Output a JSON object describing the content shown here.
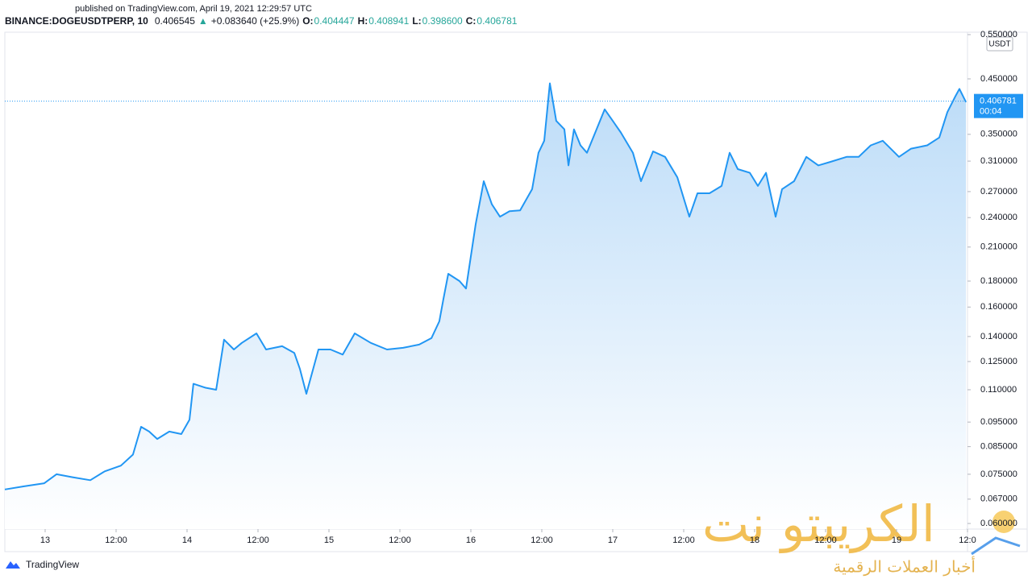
{
  "header": {
    "published": "published on TradingView.com, April 19, 2021 12:29:57 UTC",
    "symbol": "BINANCE:DOGEUSDTPERP, 10",
    "last": "0.406545",
    "arrow": "▲",
    "change": "+0.083640 (+25.9%)",
    "ohlc": [
      {
        "label": "O:",
        "value": "0.404447"
      },
      {
        "label": "H:",
        "value": "0.408941"
      },
      {
        "label": "L:",
        "value": "0.398600"
      },
      {
        "label": "C:",
        "value": "0.406781"
      }
    ]
  },
  "chart_data": {
    "type": "area",
    "log_scale": true,
    "color": "#2196f3",
    "unit": "USDT",
    "last_price": {
      "value": 0.406781,
      "label": "0.406781"
    },
    "countdown": "00:04",
    "x": [
      12.716,
      12.852,
      12.994,
      13.08,
      13.193,
      13.318,
      13.42,
      13.534,
      13.619,
      13.676,
      13.733,
      13.79,
      13.875,
      13.96,
      14.017,
      14.045,
      14.131,
      14.205,
      14.261,
      14.33,
      14.386,
      14.489,
      14.557,
      14.67,
      14.756,
      14.795,
      14.841,
      14.926,
      15.011,
      15.097,
      15.182,
      15.295,
      15.409,
      15.523,
      15.636,
      15.722,
      15.778,
      15.807,
      15.841,
      15.92,
      15.966,
      16.034,
      16.091,
      16.148,
      16.205,
      16.273,
      16.347,
      16.432,
      16.477,
      16.517,
      16.557,
      16.602,
      16.659,
      16.688,
      16.727,
      16.773,
      16.818,
      16.886,
      16.943,
      17.0,
      17.057,
      17.142,
      17.199,
      17.284,
      17.369,
      17.455,
      17.54,
      17.597,
      17.682,
      17.767,
      17.824,
      17.881,
      17.966,
      18.023,
      18.08,
      18.148,
      18.193,
      18.278,
      18.364,
      18.449,
      18.534,
      18.648,
      18.733,
      18.818,
      18.903,
      19.017,
      19.102,
      19.216,
      19.301,
      19.358,
      19.415,
      19.443,
      19.489
    ],
    "values": [
      0.07,
      0.071,
      0.072,
      0.075,
      0.074,
      0.073,
      0.076,
      0.078,
      0.082,
      0.093,
      0.091,
      0.088,
      0.091,
      0.09,
      0.096,
      0.113,
      0.111,
      0.11,
      0.138,
      0.132,
      0.136,
      0.142,
      0.132,
      0.134,
      0.13,
      0.121,
      0.108,
      0.132,
      0.132,
      0.129,
      0.142,
      0.136,
      0.132,
      0.133,
      0.135,
      0.139,
      0.15,
      0.166,
      0.186,
      0.18,
      0.174,
      0.233,
      0.283,
      0.255,
      0.241,
      0.247,
      0.248,
      0.273,
      0.322,
      0.34,
      0.441,
      0.372,
      0.358,
      0.304,
      0.358,
      0.333,
      0.322,
      0.358,
      0.392,
      0.372,
      0.353,
      0.322,
      0.283,
      0.324,
      0.316,
      0.288,
      0.241,
      0.268,
      0.268,
      0.277,
      0.322,
      0.299,
      0.294,
      0.277,
      0.294,
      0.241,
      0.273,
      0.283,
      0.316,
      0.304,
      0.309,
      0.316,
      0.316,
      0.333,
      0.34,
      0.316,
      0.328,
      0.333,
      0.345,
      0.387,
      0.416,
      0.43,
      0.405
    ],
    "xlim": [
      12.716,
      19.5
    ],
    "xticks": [
      13,
      {
        "value": 13.5,
        "label": "12:00"
      },
      14,
      {
        "value": 14.5,
        "label": "12:00"
      },
      15,
      {
        "value": 15.5,
        "label": "12:00"
      },
      16,
      {
        "value": 16.5,
        "label": "12:00"
      },
      17,
      {
        "value": 17.5,
        "label": "12:00"
      },
      18,
      {
        "value": 18.5,
        "label": "12:00"
      },
      19,
      {
        "value": 19.5,
        "label": "12:0"
      }
    ],
    "ylim": [
      0.0585,
      0.556
    ],
    "yticks": [
      {
        "value": 0.55,
        "label": "0.550000"
      },
      {
        "value": 0.45,
        "label": "0.450000"
      },
      {
        "value": 0.35,
        "label": "0.350000"
      },
      {
        "value": 0.31,
        "label": "0.310000"
      },
      {
        "value": 0.27,
        "label": "0.270000"
      },
      {
        "value": 0.24,
        "label": "0.240000"
      },
      {
        "value": 0.21,
        "label": "0.210000"
      },
      {
        "value": 0.18,
        "label": "0.180000"
      },
      {
        "value": 0.16,
        "label": "0.160000"
      },
      {
        "value": 0.14,
        "label": "0.140000"
      },
      {
        "value": 0.125,
        "label": "0.125000"
      },
      {
        "value": 0.11,
        "label": "0.110000"
      },
      {
        "value": 0.095,
        "label": "0.095000"
      },
      {
        "value": 0.085,
        "label": "0.085000"
      },
      {
        "value": 0.075,
        "label": "0.075000"
      },
      {
        "value": 0.067,
        "label": "0.067000"
      },
      {
        "value": 0.06,
        "label": "0.060000"
      }
    ]
  },
  "watermark": {
    "name": "الكريبتو نت",
    "tagline": "أخبار العملات الرقمية"
  },
  "footer": {
    "brand": "TradingView"
  }
}
